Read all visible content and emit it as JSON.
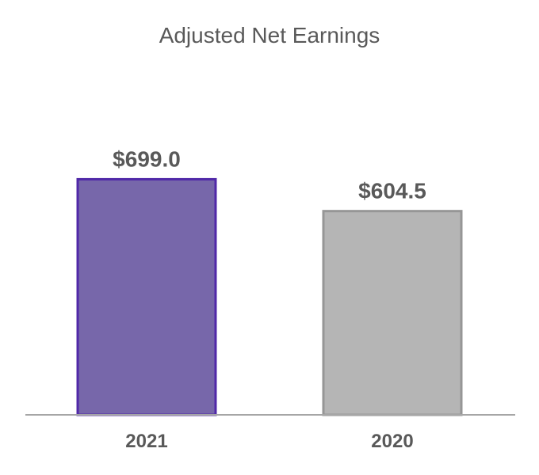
{
  "chart_data": {
    "type": "bar",
    "title": "Adjusted Net Earnings",
    "categories": [
      "2021",
      "2020"
    ],
    "values": [
      699.0,
      604.5
    ],
    "value_labels": [
      "$699.0",
      "$604.5"
    ],
    "xlabel": "",
    "ylabel": "",
    "ylim": [
      0,
      700
    ],
    "grid": false,
    "legend": "none",
    "bar_colors": [
      {
        "fill": "#7767AA",
        "stroke": "#5028A8"
      },
      {
        "fill": "#B5B5B5",
        "stroke": "#969696"
      }
    ],
    "axis_color": "#A6A6A6"
  }
}
